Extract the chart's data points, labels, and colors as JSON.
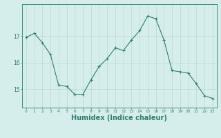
{
  "x": [
    0,
    1,
    2,
    3,
    4,
    5,
    6,
    7,
    8,
    9,
    10,
    11,
    12,
    13,
    14,
    15,
    16,
    17,
    18,
    19,
    20,
    21,
    22,
    23
  ],
  "y": [
    16.95,
    17.1,
    16.75,
    16.3,
    15.15,
    15.1,
    14.8,
    14.8,
    15.35,
    15.85,
    16.15,
    16.55,
    16.45,
    16.85,
    17.2,
    17.75,
    17.65,
    16.85,
    15.7,
    15.65,
    15.6,
    15.2,
    14.75,
    14.65
  ],
  "line_color": "#2e7d6e",
  "marker": "+",
  "marker_size": 3,
  "bg_color": "#d6eeeb",
  "grid_color": "#b8d8d4",
  "axis_color": "#2e7d6e",
  "xlabel": "Humidex (Indice chaleur)",
  "xlabel_fontsize": 7,
  "yticks": [
    15,
    16,
    17
  ],
  "xticks": [
    0,
    1,
    2,
    3,
    4,
    5,
    6,
    7,
    8,
    9,
    10,
    11,
    12,
    13,
    14,
    15,
    16,
    17,
    18,
    19,
    20,
    21,
    22,
    23
  ],
  "ylim": [
    14.3,
    18.2
  ],
  "xlim": [
    -0.5,
    23.5
  ]
}
